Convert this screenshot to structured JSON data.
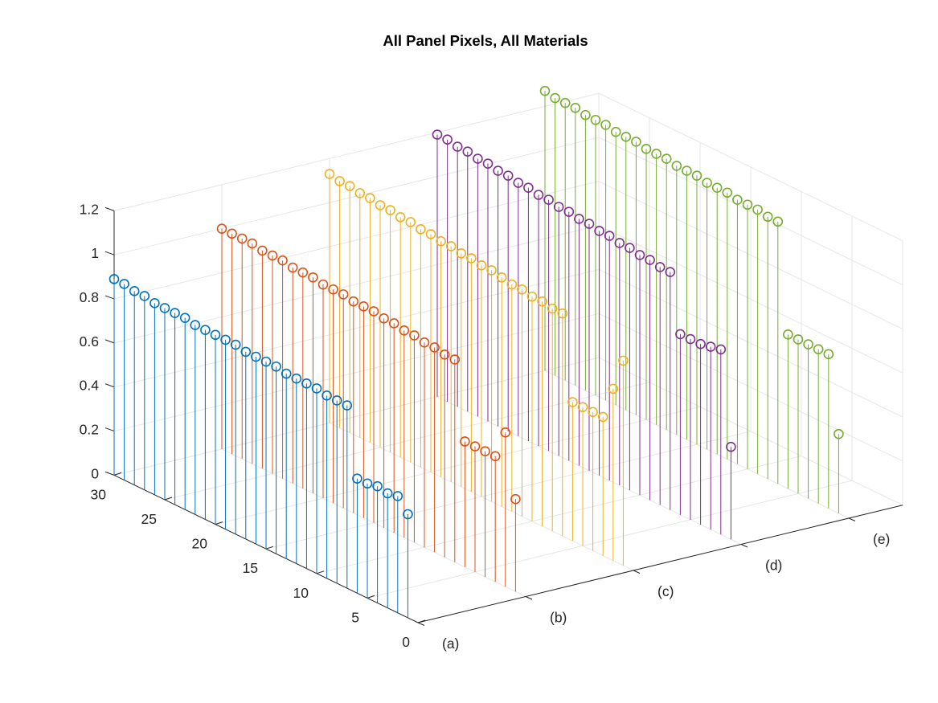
{
  "chart_data": {
    "type": "stem3",
    "title": "All Panel Pixels, All Materials",
    "xlabel": "",
    "ylabel": "",
    "zlabel": "",
    "categories": [
      "(a)",
      "(b)",
      "(c)",
      "(d)",
      "(e)"
    ],
    "y_ticks": [
      "0",
      "5",
      "10",
      "15",
      "20",
      "25",
      "30"
    ],
    "z_ticks": [
      "0",
      "0.2",
      "0.4",
      "0.6",
      "0.8",
      "1",
      "1.2"
    ],
    "ylim": [
      0,
      30
    ],
    "zlim": [
      0,
      1.2
    ],
    "grid": true,
    "series": [
      {
        "category": "(a)",
        "color": "#0072BD",
        "points": [
          [
            1,
            0.47
          ],
          [
            2,
            0.53
          ],
          [
            3,
            0.52
          ],
          [
            4,
            0.53
          ],
          [
            5,
            0.52
          ],
          [
            6,
            0.52
          ],
          [
            7,
            0.83
          ],
          [
            8,
            0.83
          ],
          [
            9,
            0.83
          ],
          [
            10,
            0.84
          ],
          [
            11,
            0.84
          ],
          [
            12,
            0.84
          ],
          [
            13,
            0.84
          ],
          [
            14,
            0.85
          ],
          [
            15,
            0.85
          ],
          [
            16,
            0.85
          ],
          [
            17,
            0.85
          ],
          [
            18,
            0.86
          ],
          [
            19,
            0.86
          ],
          [
            20,
            0.86
          ],
          [
            21,
            0.86
          ],
          [
            22,
            0.86
          ],
          [
            23,
            0.87
          ],
          [
            24,
            0.87
          ],
          [
            25,
            0.87
          ],
          [
            26,
            0.87
          ],
          [
            27,
            0.88
          ],
          [
            28,
            0.88
          ],
          [
            29,
            0.89
          ],
          [
            30,
            0.89
          ]
        ]
      },
      {
        "category": "(b)",
        "color": "#D95319",
        "points": [
          [
            1,
            0.42
          ],
          [
            2,
            0.7
          ],
          [
            3,
            0.57
          ],
          [
            4,
            0.57
          ],
          [
            5,
            0.57
          ],
          [
            6,
            0.57
          ],
          [
            7,
            0.92
          ],
          [
            8,
            0.92
          ],
          [
            9,
            0.93
          ],
          [
            10,
            0.93
          ],
          [
            11,
            0.94
          ],
          [
            12,
            0.94
          ],
          [
            13,
            0.95
          ],
          [
            14,
            0.95
          ],
          [
            15,
            0.96
          ],
          [
            16,
            0.96
          ],
          [
            17,
            0.96
          ],
          [
            18,
            0.97
          ],
          [
            19,
            0.97
          ],
          [
            20,
            0.97
          ],
          [
            21,
            0.98
          ],
          [
            22,
            0.98
          ],
          [
            23,
            0.98
          ],
          [
            24,
            0.99
          ],
          [
            25,
            0.99
          ],
          [
            26,
            0.99
          ],
          [
            27,
            1.0
          ],
          [
            28,
            1.0
          ],
          [
            29,
            1.0
          ],
          [
            30,
            1.0
          ]
        ]
      },
      {
        "category": "(c)",
        "color": "#EDB120",
        "points": [
          [
            1,
            0.93
          ],
          [
            2,
            0.78
          ],
          [
            3,
            0.63
          ],
          [
            4,
            0.63
          ],
          [
            5,
            0.63
          ],
          [
            6,
            0.63
          ],
          [
            7,
            1.01
          ],
          [
            8,
            1.01
          ],
          [
            9,
            1.02
          ],
          [
            10,
            1.02
          ],
          [
            11,
            1.03
          ],
          [
            12,
            1.03
          ],
          [
            13,
            1.04
          ],
          [
            14,
            1.05
          ],
          [
            15,
            1.05
          ],
          [
            16,
            1.06
          ],
          [
            17,
            1.06
          ],
          [
            18,
            1.07
          ],
          [
            19,
            1.07
          ],
          [
            20,
            1.08
          ],
          [
            21,
            1.08
          ],
          [
            22,
            1.09
          ],
          [
            23,
            1.09
          ],
          [
            24,
            1.1
          ],
          [
            25,
            1.1
          ],
          [
            26,
            1.11
          ],
          [
            27,
            1.11
          ],
          [
            28,
            1.12
          ],
          [
            29,
            1.12
          ],
          [
            30,
            1.13
          ]
        ]
      },
      {
        "category": "(d)",
        "color": "#7E2F8E",
        "points": [
          [
            1,
            0.42
          ],
          [
            2,
            0.84
          ],
          [
            3,
            0.83
          ],
          [
            4,
            0.82
          ],
          [
            5,
            0.82
          ],
          [
            6,
            0.82
          ],
          [
            7,
            1.08
          ],
          [
            8,
            1.08
          ],
          [
            9,
            1.09
          ],
          [
            10,
            1.09
          ],
          [
            11,
            1.1
          ],
          [
            12,
            1.1
          ],
          [
            13,
            1.11
          ],
          [
            14,
            1.11
          ],
          [
            15,
            1.12
          ],
          [
            16,
            1.12
          ],
          [
            17,
            1.13
          ],
          [
            18,
            1.13
          ],
          [
            19,
            1.14
          ],
          [
            20,
            1.14
          ],
          [
            21,
            1.15
          ],
          [
            22,
            1.15
          ],
          [
            23,
            1.16
          ],
          [
            24,
            1.16
          ],
          [
            25,
            1.17
          ],
          [
            26,
            1.17
          ],
          [
            27,
            1.18
          ],
          [
            28,
            1.18
          ],
          [
            29,
            1.19
          ],
          [
            30,
            1.19
          ]
        ]
      },
      {
        "category": "(e)",
        "color": "#77AC30",
        "points": [
          [
            1,
            0.36
          ],
          [
            2,
            0.7
          ],
          [
            3,
            0.7
          ],
          [
            4,
            0.7
          ],
          [
            5,
            0.7
          ],
          [
            6,
            0.7
          ],
          [
            7,
            1.19
          ],
          [
            8,
            1.19
          ],
          [
            9,
            1.2
          ],
          [
            10,
            1.2
          ],
          [
            11,
            1.2
          ],
          [
            12,
            1.21
          ],
          [
            13,
            1.21
          ],
          [
            14,
            1.21
          ],
          [
            15,
            1.22
          ],
          [
            16,
            1.22
          ],
          [
            17,
            1.22
          ],
          [
            18,
            1.23
          ],
          [
            19,
            1.23
          ],
          [
            20,
            1.23
          ],
          [
            21,
            1.24
          ],
          [
            22,
            1.24
          ],
          [
            23,
            1.24
          ],
          [
            24,
            1.25
          ],
          [
            25,
            1.25
          ],
          [
            26,
            1.25
          ],
          [
            27,
            1.26
          ],
          [
            28,
            1.26
          ],
          [
            29,
            1.26
          ],
          [
            30,
            1.27
          ]
        ]
      }
    ]
  }
}
